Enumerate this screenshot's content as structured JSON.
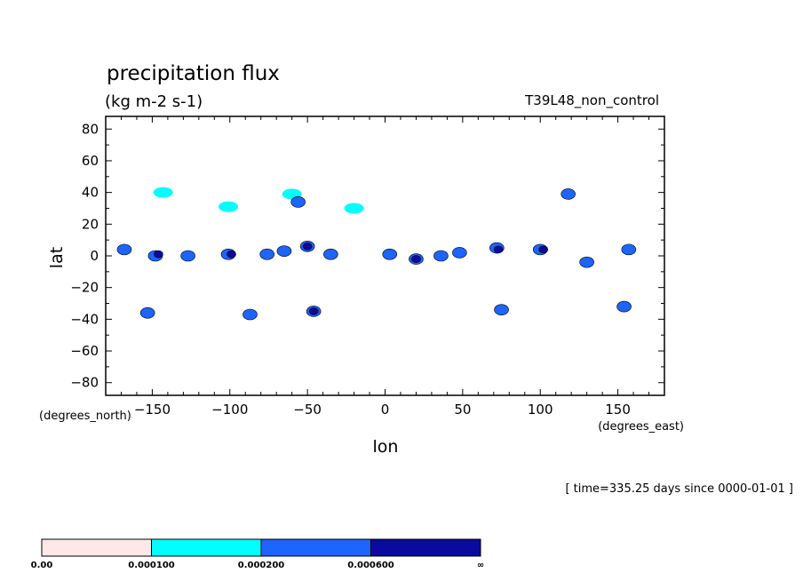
{
  "chart_data": {
    "type": "heatmap",
    "title": "precipitation flux",
    "units": "(kg m-2 s-1)",
    "run_label": "T39L48_non_control",
    "xlabel": "lon",
    "ylabel": "lat",
    "x_units": "(degrees_east)",
    "y_units": "(degrees_north)",
    "xlim": [
      -180,
      180
    ],
    "ylim": [
      -88,
      88
    ],
    "x_ticks": [
      -150,
      -100,
      -50,
      0,
      50,
      100,
      150
    ],
    "x_tick_labels": [
      "−150",
      "−100",
      "−50",
      "0",
      "50",
      "100",
      "150"
    ],
    "y_ticks": [
      80,
      60,
      40,
      20,
      0,
      -20,
      -40,
      -60,
      -80
    ],
    "y_tick_labels": [
      "80",
      "60",
      "40",
      "20",
      "0",
      "−20",
      "−40",
      "−60",
      "−80"
    ],
    "time_note": "[ time=335.25 days since 0000-01-01 ]",
    "levels": [
      {
        "label": "0.00",
        "color": "#ffe8e8"
      },
      {
        "label": "0.000100",
        "color": "#00ffff"
      },
      {
        "label": "0.000200",
        "color": "#1e64ff"
      },
      {
        "label": "0.000600",
        "color": "#0a0aa0"
      },
      {
        "label": "∞",
        "color": ""
      }
    ],
    "regions": [
      {
        "lon": -168,
        "lat": 4,
        "level": 2
      },
      {
        "lon": -148,
        "lat": 0,
        "level": 2
      },
      {
        "lon": -146,
        "lat": 1,
        "level": 3
      },
      {
        "lon": -143,
        "lat": 40,
        "level": 1
      },
      {
        "lon": -127,
        "lat": 0,
        "level": 2
      },
      {
        "lon": -101,
        "lat": 1,
        "level": 2
      },
      {
        "lon": -99,
        "lat": 1,
        "level": 3
      },
      {
        "lon": -101,
        "lat": 31,
        "level": 1
      },
      {
        "lon": -76,
        "lat": 1,
        "level": 2
      },
      {
        "lon": -65,
        "lat": 3,
        "level": 2
      },
      {
        "lon": -50,
        "lat": 6,
        "level": 2
      },
      {
        "lon": -50,
        "lat": 6,
        "level": 3
      },
      {
        "lon": -60,
        "lat": 39,
        "level": 1
      },
      {
        "lon": -56,
        "lat": 34,
        "level": 2
      },
      {
        "lon": -35,
        "lat": 1,
        "level": 2
      },
      {
        "lon": -20,
        "lat": 30,
        "level": 1
      },
      {
        "lon": 3,
        "lat": 1,
        "level": 2
      },
      {
        "lon": 20,
        "lat": -2,
        "level": 2
      },
      {
        "lon": 20,
        "lat": -2,
        "level": 3
      },
      {
        "lon": 36,
        "lat": 0,
        "level": 2
      },
      {
        "lon": 48,
        "lat": 2,
        "level": 2
      },
      {
        "lon": 72,
        "lat": 5,
        "level": 2
      },
      {
        "lon": 73,
        "lat": 4,
        "level": 3
      },
      {
        "lon": 100,
        "lat": 4,
        "level": 2
      },
      {
        "lon": 102,
        "lat": 4,
        "level": 3
      },
      {
        "lon": 118,
        "lat": 39,
        "level": 2
      },
      {
        "lon": 130,
        "lat": -4,
        "level": 2
      },
      {
        "lon": 157,
        "lat": 4,
        "level": 2
      },
      {
        "lon": -153,
        "lat": -36,
        "level": 2
      },
      {
        "lon": -87,
        "lat": -37,
        "level": 2
      },
      {
        "lon": -46,
        "lat": -35,
        "level": 2
      },
      {
        "lon": -46,
        "lat": -35,
        "level": 3
      },
      {
        "lon": 75,
        "lat": -34,
        "level": 2
      },
      {
        "lon": 154,
        "lat": -32,
        "level": 2
      }
    ]
  }
}
